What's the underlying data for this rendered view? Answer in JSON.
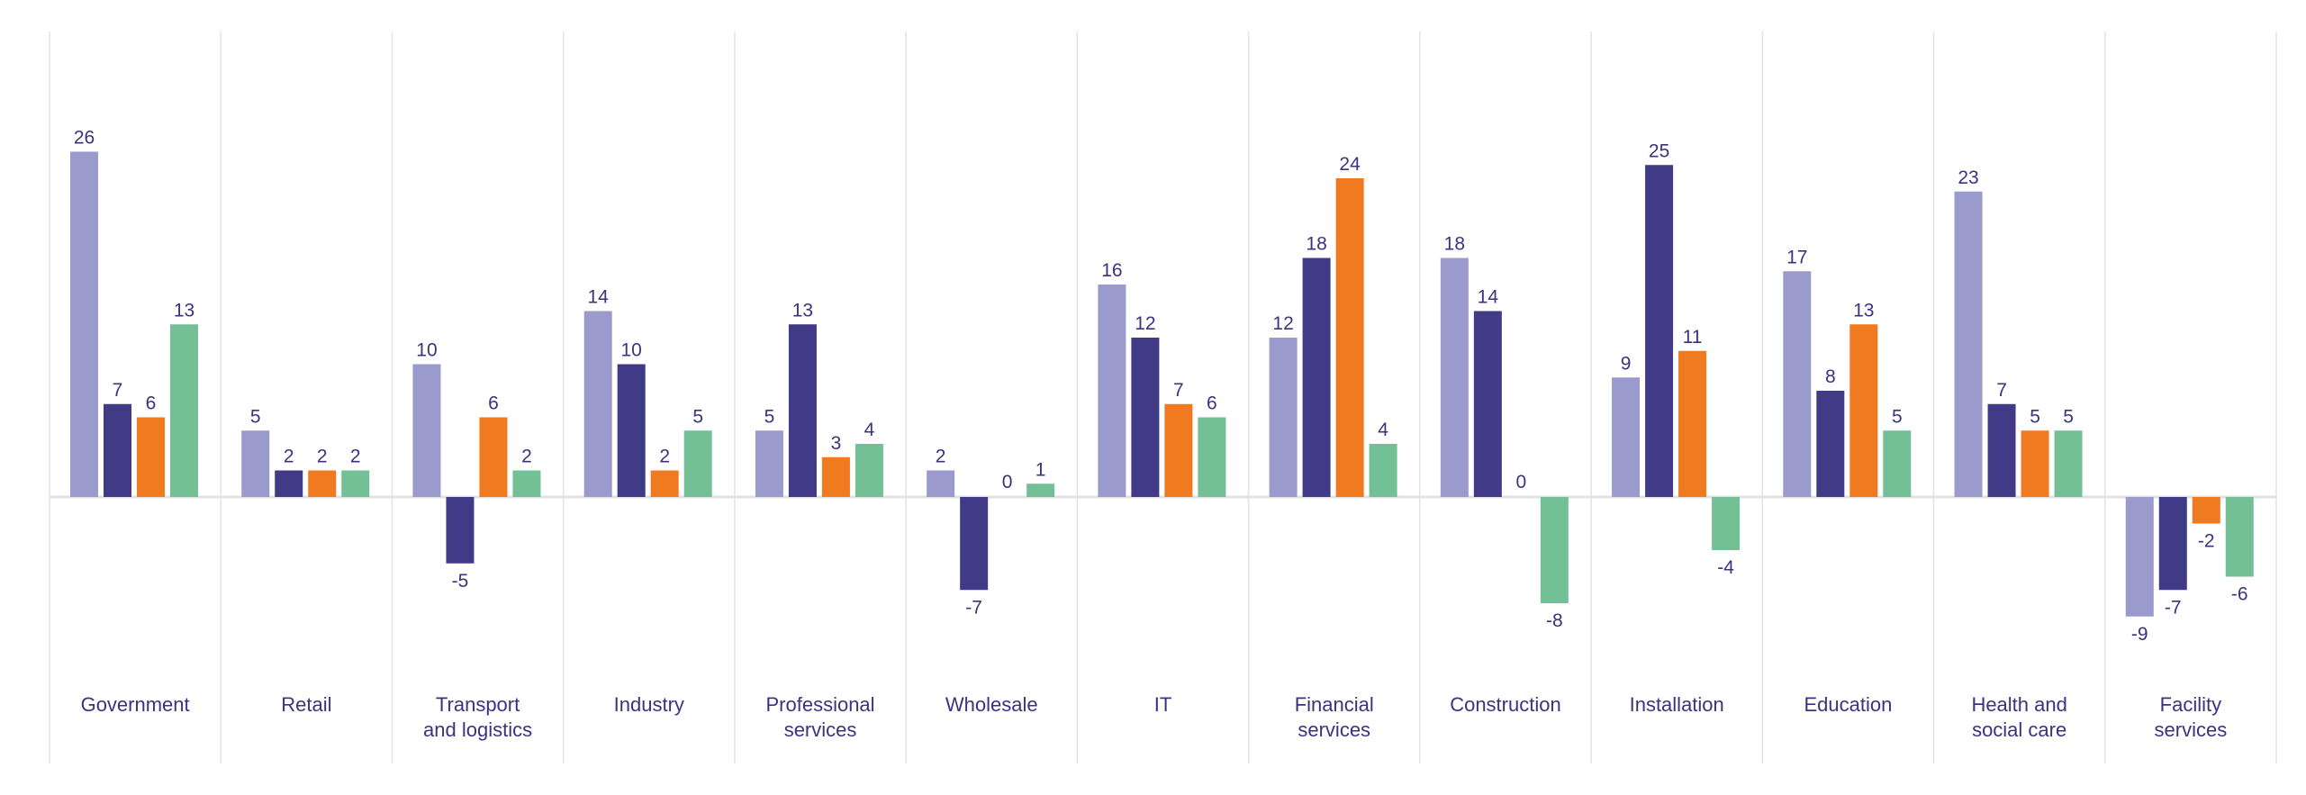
{
  "colors": {
    "series": [
      "#9b9acc",
      "#403a87",
      "#ef7a1f",
      "#73c096"
    ],
    "label_text": "#3a3380",
    "grid": "#e3e3e8",
    "zero_line": "#e1e1e6"
  },
  "chart_data": {
    "type": "bar",
    "title": "",
    "xlabel": "",
    "ylabel": "",
    "ylim": [
      -15,
      35
    ],
    "grid": true,
    "legend": "none",
    "categories": [
      "Government",
      "Retail",
      "Transport and logistics",
      "Industry",
      "Professional services",
      "Wholesale",
      "IT",
      "Financial services",
      "Construction",
      "Installation",
      "Education",
      "Health and social care",
      "Facility services"
    ],
    "series": [
      {
        "values": [
          26,
          5,
          10,
          14,
          5,
          2,
          16,
          12,
          18,
          9,
          17,
          23,
          -9
        ]
      },
      {
        "values": [
          7,
          2,
          -5,
          10,
          13,
          -7,
          12,
          18,
          14,
          25,
          8,
          7,
          -7
        ]
      },
      {
        "values": [
          6,
          2,
          6,
          2,
          3,
          0,
          7,
          24,
          0,
          11,
          13,
          5,
          -2
        ]
      },
      {
        "values": [
          13,
          2,
          2,
          5,
          4,
          1,
          6,
          4,
          -8,
          -4,
          5,
          5,
          -6
        ]
      }
    ]
  }
}
